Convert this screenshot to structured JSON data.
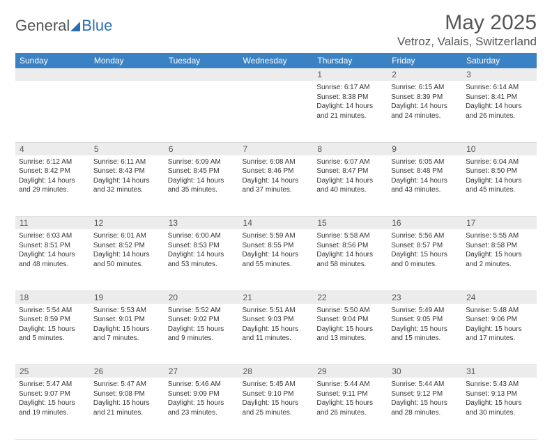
{
  "logo": {
    "general": "General",
    "blue": "Blue"
  },
  "title": "May 2025",
  "location": "Vetroz, Valais, Switzerland",
  "colors": {
    "header_bg": "#3b82c4",
    "header_text": "#ffffff",
    "daynum_bg": "#ececec",
    "text": "#333333",
    "muted": "#555555",
    "accent": "#2b6fb3"
  },
  "day_headers": [
    "Sunday",
    "Monday",
    "Tuesday",
    "Wednesday",
    "Thursday",
    "Friday",
    "Saturday"
  ],
  "weeks": [
    [
      null,
      null,
      null,
      null,
      {
        "n": "1",
        "sunrise": "Sunrise: 6:17 AM",
        "sunset": "Sunset: 8:38 PM",
        "daylight": "Daylight: 14 hours and 21 minutes."
      },
      {
        "n": "2",
        "sunrise": "Sunrise: 6:15 AM",
        "sunset": "Sunset: 8:39 PM",
        "daylight": "Daylight: 14 hours and 24 minutes."
      },
      {
        "n": "3",
        "sunrise": "Sunrise: 6:14 AM",
        "sunset": "Sunset: 8:41 PM",
        "daylight": "Daylight: 14 hours and 26 minutes."
      }
    ],
    [
      {
        "n": "4",
        "sunrise": "Sunrise: 6:12 AM",
        "sunset": "Sunset: 8:42 PM",
        "daylight": "Daylight: 14 hours and 29 minutes."
      },
      {
        "n": "5",
        "sunrise": "Sunrise: 6:11 AM",
        "sunset": "Sunset: 8:43 PM",
        "daylight": "Daylight: 14 hours and 32 minutes."
      },
      {
        "n": "6",
        "sunrise": "Sunrise: 6:09 AM",
        "sunset": "Sunset: 8:45 PM",
        "daylight": "Daylight: 14 hours and 35 minutes."
      },
      {
        "n": "7",
        "sunrise": "Sunrise: 6:08 AM",
        "sunset": "Sunset: 8:46 PM",
        "daylight": "Daylight: 14 hours and 37 minutes."
      },
      {
        "n": "8",
        "sunrise": "Sunrise: 6:07 AM",
        "sunset": "Sunset: 8:47 PM",
        "daylight": "Daylight: 14 hours and 40 minutes."
      },
      {
        "n": "9",
        "sunrise": "Sunrise: 6:05 AM",
        "sunset": "Sunset: 8:48 PM",
        "daylight": "Daylight: 14 hours and 43 minutes."
      },
      {
        "n": "10",
        "sunrise": "Sunrise: 6:04 AM",
        "sunset": "Sunset: 8:50 PM",
        "daylight": "Daylight: 14 hours and 45 minutes."
      }
    ],
    [
      {
        "n": "11",
        "sunrise": "Sunrise: 6:03 AM",
        "sunset": "Sunset: 8:51 PM",
        "daylight": "Daylight: 14 hours and 48 minutes."
      },
      {
        "n": "12",
        "sunrise": "Sunrise: 6:01 AM",
        "sunset": "Sunset: 8:52 PM",
        "daylight": "Daylight: 14 hours and 50 minutes."
      },
      {
        "n": "13",
        "sunrise": "Sunrise: 6:00 AM",
        "sunset": "Sunset: 8:53 PM",
        "daylight": "Daylight: 14 hours and 53 minutes."
      },
      {
        "n": "14",
        "sunrise": "Sunrise: 5:59 AM",
        "sunset": "Sunset: 8:55 PM",
        "daylight": "Daylight: 14 hours and 55 minutes."
      },
      {
        "n": "15",
        "sunrise": "Sunrise: 5:58 AM",
        "sunset": "Sunset: 8:56 PM",
        "daylight": "Daylight: 14 hours and 58 minutes."
      },
      {
        "n": "16",
        "sunrise": "Sunrise: 5:56 AM",
        "sunset": "Sunset: 8:57 PM",
        "daylight": "Daylight: 15 hours and 0 minutes."
      },
      {
        "n": "17",
        "sunrise": "Sunrise: 5:55 AM",
        "sunset": "Sunset: 8:58 PM",
        "daylight": "Daylight: 15 hours and 2 minutes."
      }
    ],
    [
      {
        "n": "18",
        "sunrise": "Sunrise: 5:54 AM",
        "sunset": "Sunset: 8:59 PM",
        "daylight": "Daylight: 15 hours and 5 minutes."
      },
      {
        "n": "19",
        "sunrise": "Sunrise: 5:53 AM",
        "sunset": "Sunset: 9:01 PM",
        "daylight": "Daylight: 15 hours and 7 minutes."
      },
      {
        "n": "20",
        "sunrise": "Sunrise: 5:52 AM",
        "sunset": "Sunset: 9:02 PM",
        "daylight": "Daylight: 15 hours and 9 minutes."
      },
      {
        "n": "21",
        "sunrise": "Sunrise: 5:51 AM",
        "sunset": "Sunset: 9:03 PM",
        "daylight": "Daylight: 15 hours and 11 minutes."
      },
      {
        "n": "22",
        "sunrise": "Sunrise: 5:50 AM",
        "sunset": "Sunset: 9:04 PM",
        "daylight": "Daylight: 15 hours and 13 minutes."
      },
      {
        "n": "23",
        "sunrise": "Sunrise: 5:49 AM",
        "sunset": "Sunset: 9:05 PM",
        "daylight": "Daylight: 15 hours and 15 minutes."
      },
      {
        "n": "24",
        "sunrise": "Sunrise: 5:48 AM",
        "sunset": "Sunset: 9:06 PM",
        "daylight": "Daylight: 15 hours and 17 minutes."
      }
    ],
    [
      {
        "n": "25",
        "sunrise": "Sunrise: 5:47 AM",
        "sunset": "Sunset: 9:07 PM",
        "daylight": "Daylight: 15 hours and 19 minutes."
      },
      {
        "n": "26",
        "sunrise": "Sunrise: 5:47 AM",
        "sunset": "Sunset: 9:08 PM",
        "daylight": "Daylight: 15 hours and 21 minutes."
      },
      {
        "n": "27",
        "sunrise": "Sunrise: 5:46 AM",
        "sunset": "Sunset: 9:09 PM",
        "daylight": "Daylight: 15 hours and 23 minutes."
      },
      {
        "n": "28",
        "sunrise": "Sunrise: 5:45 AM",
        "sunset": "Sunset: 9:10 PM",
        "daylight": "Daylight: 15 hours and 25 minutes."
      },
      {
        "n": "29",
        "sunrise": "Sunrise: 5:44 AM",
        "sunset": "Sunset: 9:11 PM",
        "daylight": "Daylight: 15 hours and 26 minutes."
      },
      {
        "n": "30",
        "sunrise": "Sunrise: 5:44 AM",
        "sunset": "Sunset: 9:12 PM",
        "daylight": "Daylight: 15 hours and 28 minutes."
      },
      {
        "n": "31",
        "sunrise": "Sunrise: 5:43 AM",
        "sunset": "Sunset: 9:13 PM",
        "daylight": "Daylight: 15 hours and 30 minutes."
      }
    ]
  ]
}
